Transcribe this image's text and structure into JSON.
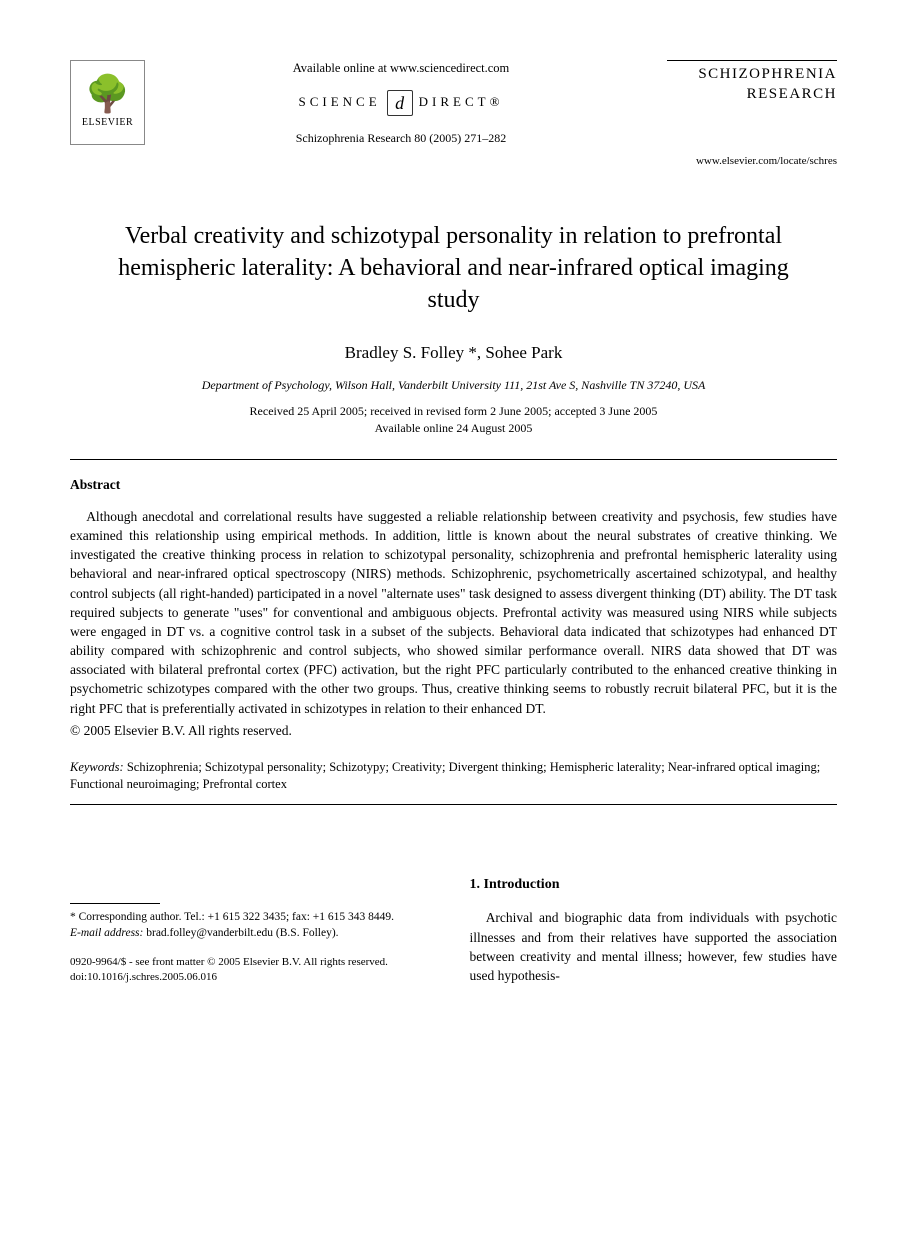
{
  "header": {
    "available_online": "Available online at www.sciencedirect.com",
    "science_direct_left": "SCIENCE",
    "science_direct_right": "DIRECT®",
    "citation": "Schizophrenia Research 80 (2005) 271–282",
    "elsevier_name": "ELSEVIER",
    "journal_line1": "SCHIZOPHRENIA",
    "journal_line2": "RESEARCH",
    "journal_url": "www.elsevier.com/locate/schres"
  },
  "article": {
    "title": "Verbal creativity and schizotypal personality in relation to prefrontal hemispheric laterality: A behavioral and near-infrared optical imaging study",
    "authors": "Bradley S. Folley *, Sohee Park",
    "affiliation": "Department of Psychology, Wilson Hall, Vanderbilt University 111, 21st Ave S, Nashville TN 37240, USA",
    "received": "Received 25 April 2005; received in revised form 2 June 2005; accepted 3 June 2005",
    "available": "Available online 24 August 2005"
  },
  "abstract": {
    "heading": "Abstract",
    "body": "Although anecdotal and correlational results have suggested a reliable relationship between creativity and psychosis, few studies have examined this relationship using empirical methods. In addition, little is known about the neural substrates of creative thinking. We investigated the creative thinking process in relation to schizotypal personality, schizophrenia and prefrontal hemispheric laterality using behavioral and near-infrared optical spectroscopy (NIRS) methods. Schizophrenic, psychometrically ascertained schizotypal, and healthy control subjects (all right-handed) participated in a novel \"alternate uses\" task designed to assess divergent thinking (DT) ability. The DT task required subjects to generate \"uses\" for conventional and ambiguous objects. Prefrontal activity was measured using NIRS while subjects were engaged in DT vs. a cognitive control task in a subset of the subjects. Behavioral data indicated that schizotypes had enhanced DT ability compared with schizophrenic and control subjects, who showed similar performance overall. NIRS data showed that DT was associated with bilateral prefrontal cortex (PFC) activation, but the right PFC particularly contributed to the enhanced creative thinking in psychometric schizotypes compared with the other two groups. Thus, creative thinking seems to robustly recruit bilateral PFC, but it is the right PFC that is preferentially activated in schizotypes in relation to their enhanced DT.",
    "copyright": "© 2005 Elsevier B.V. All rights reserved."
  },
  "keywords": {
    "label": "Keywords:",
    "list": "Schizophrenia; Schizotypal personality; Schizotypy; Creativity; Divergent thinking; Hemispheric laterality; Near-infrared optical imaging; Functional neuroimaging; Prefrontal cortex"
  },
  "footnote": {
    "corr": "* Corresponding author. Tel.: +1 615 322 3435; fax: +1 615 343 8449.",
    "email_label": "E-mail address:",
    "email": "brad.folley@vanderbilt.edu (B.S. Folley)."
  },
  "intro": {
    "heading": "1. Introduction",
    "para": "Archival and biographic data from individuals with psychotic illnesses and from their relatives have supported the association between creativity and mental illness; however, few studies have used hypothesis-"
  },
  "footer": {
    "line1": "0920-9964/$ - see front matter © 2005 Elsevier B.V. All rights reserved.",
    "line2": "doi:10.1016/j.schres.2005.06.016"
  },
  "colors": {
    "text": "#000000",
    "background": "#ffffff",
    "logo_border": "#888888",
    "tree_glyph": "#666666"
  },
  "typography": {
    "body_font": "Times New Roman",
    "title_fontsize_pt": 18,
    "authors_fontsize_pt": 13,
    "abstract_fontsize_pt": 10,
    "footnote_fontsize_pt": 8.5
  }
}
